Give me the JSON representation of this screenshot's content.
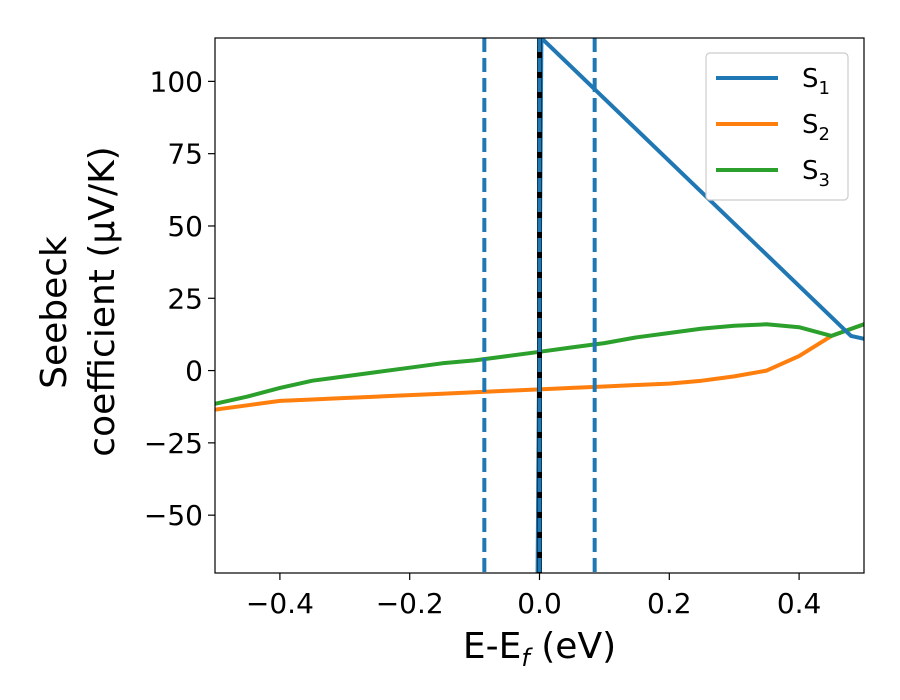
{
  "chart_data": {
    "type": "line",
    "xlabel": {
      "main": "E-E",
      "sub": "f",
      "unit": " (eV)"
    },
    "ylabel": {
      "line1": "Seebeck",
      "line2": "coefficient  (μV/K)"
    },
    "xlim": [
      -0.5,
      0.5
    ],
    "ylim": [
      -70,
      115
    ],
    "xticks": [
      -0.4,
      -0.2,
      0.0,
      0.2,
      0.4
    ],
    "xtick_labels": [
      "−0.4",
      "−0.2",
      "0.0",
      "0.2",
      "0.4"
    ],
    "yticks": [
      -50,
      -25,
      0,
      25,
      50,
      75,
      100
    ],
    "ytick_labels": [
      "−50",
      "−25",
      "0",
      "25",
      "50",
      "75",
      "100"
    ],
    "grid": false,
    "legend_position": "top-right",
    "series": [
      {
        "name": "S",
        "sub": "1",
        "color": "#1f77b4",
        "x": [
          -0.003,
          0.003,
          0.48,
          0.5
        ],
        "y": [
          -70,
          115,
          12,
          11
        ]
      },
      {
        "name": "S",
        "sub": "2",
        "color": "#ff7f0e",
        "x": [
          -0.5,
          -0.45,
          -0.4,
          -0.35,
          -0.3,
          -0.25,
          -0.2,
          -0.15,
          -0.1,
          -0.05,
          0.0,
          0.05,
          0.1,
          0.15,
          0.2,
          0.25,
          0.3,
          0.35,
          0.4,
          0.45,
          0.5
        ],
        "y": [
          -13.5,
          -12,
          -10.5,
          -10,
          -9.5,
          -9,
          -8.5,
          -8,
          -7.5,
          -7,
          -6.5,
          -6,
          -5.5,
          -5,
          -4.5,
          -3.5,
          -2,
          0,
          5,
          12,
          16
        ]
      },
      {
        "name": "S",
        "sub": "3",
        "color": "#2ca02c",
        "x": [
          -0.5,
          -0.45,
          -0.4,
          -0.35,
          -0.3,
          -0.25,
          -0.2,
          -0.15,
          -0.1,
          -0.05,
          0.0,
          0.05,
          0.1,
          0.15,
          0.2,
          0.25,
          0.3,
          0.35,
          0.4,
          0.45,
          0.5
        ],
        "y": [
          -11.5,
          -9,
          -6,
          -3.5,
          -2,
          -0.5,
          1,
          2.5,
          3.5,
          5,
          6.5,
          8,
          9.5,
          11.5,
          13,
          14.5,
          15.5,
          16,
          15,
          12,
          16
        ]
      }
    ],
    "vlines": [
      {
        "x": -0.085,
        "color": "#1f77b4",
        "style": "dashed"
      },
      {
        "x": 0.0,
        "color": "#000000",
        "style": "solid"
      },
      {
        "x": 0.0,
        "color": "#1f77b4",
        "style": "dashed"
      },
      {
        "x": 0.085,
        "color": "#1f77b4",
        "style": "dashed"
      }
    ]
  }
}
